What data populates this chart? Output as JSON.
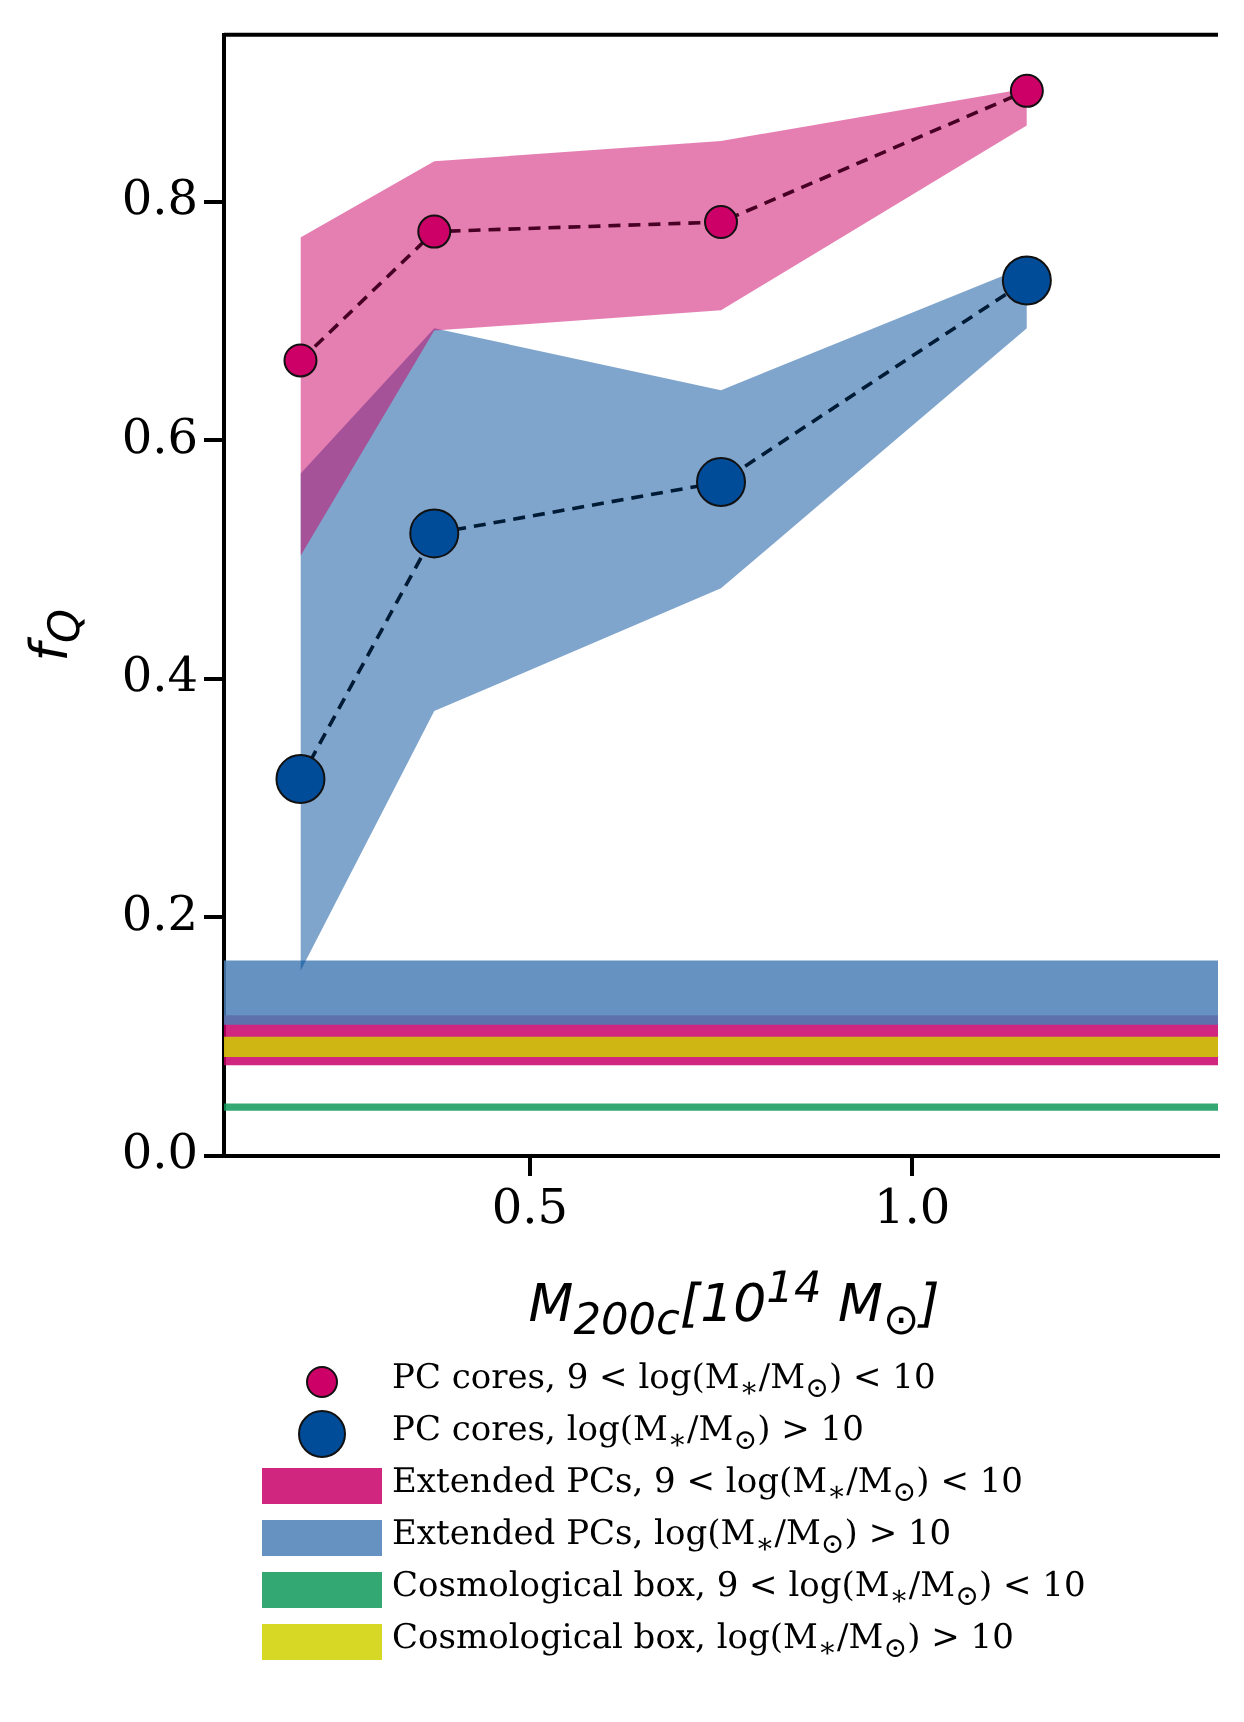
{
  "chart_data": {
    "type": "line",
    "xlabel": "M$_{200c}$[10$^{14}$ M$_{⊙}$]",
    "ylabel": "f$_{Q}$",
    "x": [
      0.2,
      0.375,
      0.75,
      1.15
    ],
    "series": [
      {
        "name": "PC cores, 9 < log(M$_{∗}$/M$_{⊙}$) < 10",
        "color": "#cc0066",
        "values": [
          0.667,
          0.775,
          0.783,
          0.893
        ],
        "lower": [
          0.503,
          0.692,
          0.709,
          0.864
        ],
        "upper": [
          0.77,
          0.834,
          0.851,
          0.895
        ]
      },
      {
        "name": "PC cores, log(M$_{∗}$/M$_{⊙}$) > 10",
        "color": "#004c99",
        "values": [
          0.316,
          0.522,
          0.565,
          0.734
        ],
        "lower": [
          0.155,
          0.373,
          0.476,
          0.694
        ],
        "upper": [
          0.572,
          0.694,
          0.642,
          0.746
        ]
      }
    ],
    "bands": [
      {
        "axis": "y",
        "from": 0.076,
        "to": 0.118,
        "label": "Extended PCs, 9 < log(M$_{∗}$/M$_{⊙}$) < 10",
        "color": "#c8006a"
      },
      {
        "axis": "y",
        "from": 0.11,
        "to": 0.164,
        "label": "Extended PCs, log(M$_{∗}$/M$_{⊙}$) > 10",
        "color": "#4a7fb5"
      },
      {
        "axis": "y",
        "from": 0.038,
        "to": 0.044,
        "label": "Cosmological box, 9 < log(M$_{∗}$/M$_{⊙}$) < 10",
        "color": "#10995a"
      },
      {
        "axis": "y",
        "from": 0.083,
        "to": 0.1,
        "label": "Cosmological box, log(M$_{∗}$/M$_{⊙}$) > 10",
        "color": "#d0d000"
      }
    ],
    "xlim": [
      0.1,
      1.4
    ],
    "xticks": [
      0.5,
      {
        "value": 1,
        "label": "1.0"
      }
    ],
    "ylim": [
      0,
      0.94
    ],
    "yticks": [
      {
        "value": 0,
        "label": "0.0"
      },
      0.2,
      0.4,
      0.6,
      0.8
    ],
    "grid": false,
    "legend": "bottom",
    "marker": "circle",
    "line_style": "dashed"
  }
}
